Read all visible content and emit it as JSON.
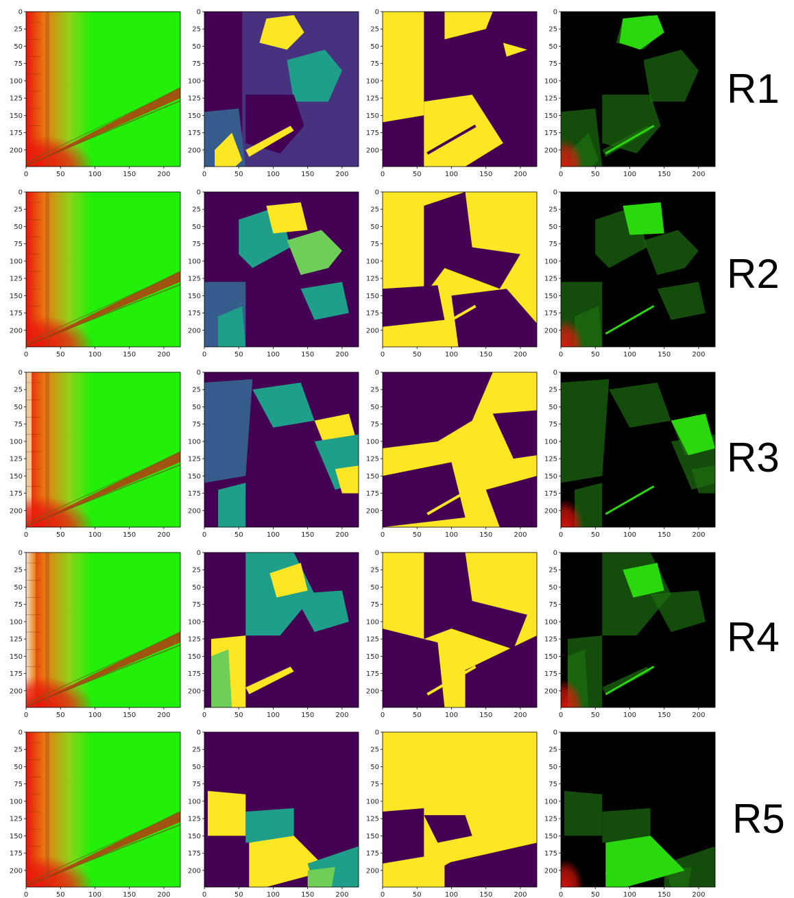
{
  "colors": {
    "heat_red": "#e8170c",
    "heat_orange": "#e97a10",
    "heat_green": "#22ef0a",
    "viridis_purple": "#440154",
    "viridis_indigo": "#46327e",
    "viridis_blue": "#365c8d",
    "viridis_teal": "#1f9e89",
    "viridis_green": "#6ece58",
    "viridis_yellow": "#fde725",
    "mask_purple": "#440154",
    "mask_yellow": "#fde725",
    "overlay_black": "#000000",
    "overlay_green": "#2bd80d",
    "overlay_dim_green": "#1c6e10"
  },
  "chart_data": {
    "type": "heatmap",
    "layout": "grid 5 rows x 4 columns",
    "columns": [
      {
        "content": "red-green heat map"
      },
      {
        "content": "segmentation map (viridis)"
      },
      {
        "content": "binary mask (purple/yellow)"
      },
      {
        "content": "heat map masked on black"
      }
    ],
    "rows": [
      {
        "label": "R1"
      },
      {
        "label": "R2"
      },
      {
        "label": "R3"
      },
      {
        "label": "R4"
      },
      {
        "label": "R5"
      }
    ],
    "x_ticks": [
      "0",
      "50",
      "100",
      "150",
      "200"
    ],
    "y_ticks": [
      "0",
      "25",
      "50",
      "75",
      "100",
      "125",
      "150",
      "175",
      "200"
    ],
    "x_range": [
      0,
      224
    ],
    "y_range": [
      224,
      0
    ]
  }
}
